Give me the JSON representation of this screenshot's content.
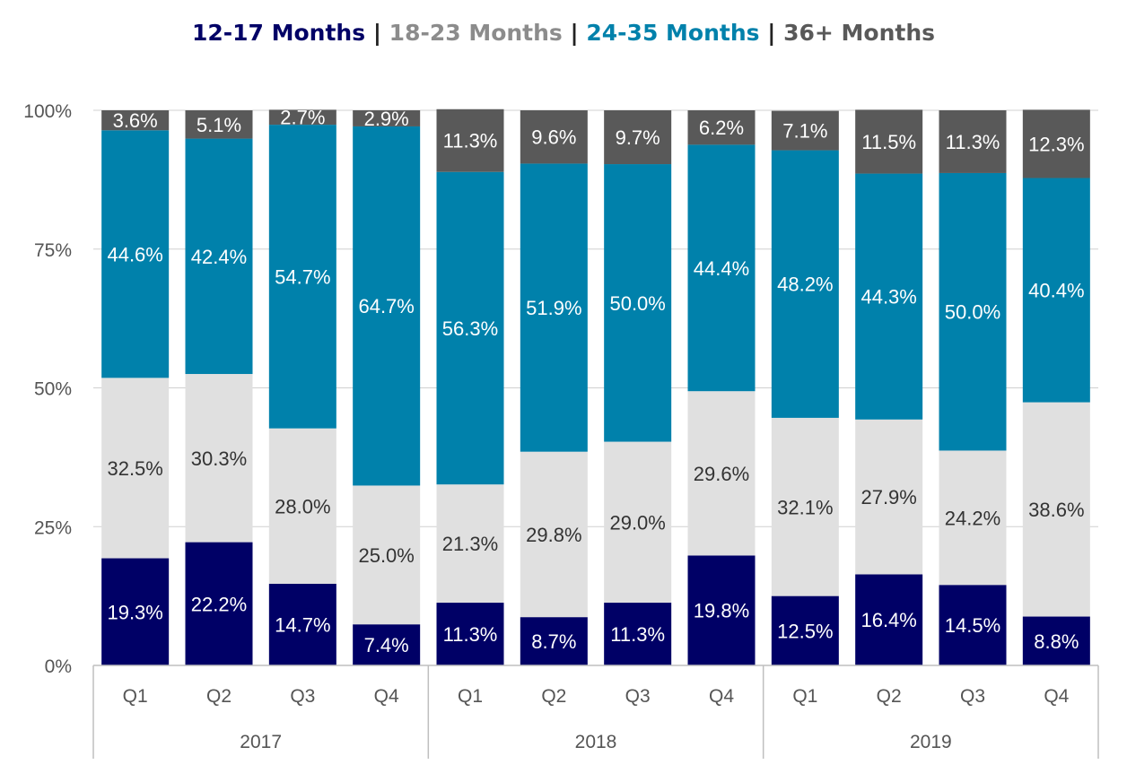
{
  "chart_data": {
    "type": "bar",
    "stacked": true,
    "title_parts": [
      "12-17 Months",
      "18-23 Months",
      "24-35 Months",
      "36+ Months"
    ],
    "title_separator": "|",
    "categories": [
      "Q1",
      "Q2",
      "Q3",
      "Q4",
      "Q1",
      "Q2",
      "Q3",
      "Q4",
      "Q1",
      "Q2",
      "Q3",
      "Q4"
    ],
    "groups": [
      {
        "label": "2017",
        "count": 4
      },
      {
        "label": "2018",
        "count": 4
      },
      {
        "label": "2019",
        "count": 4
      }
    ],
    "series": [
      {
        "name": "12-17 Months",
        "color": "#000066",
        "label_color": "#ffffff",
        "values": [
          19.3,
          22.2,
          14.7,
          7.4,
          11.3,
          8.7,
          11.3,
          19.8,
          12.5,
          16.4,
          14.5,
          8.8
        ]
      },
      {
        "name": "18-23 Months",
        "color": "#e0e0e0",
        "label_color": "#333333",
        "values": [
          32.5,
          30.3,
          28.0,
          25.0,
          21.3,
          29.8,
          29.0,
          29.6,
          32.1,
          27.9,
          24.2,
          38.6
        ]
      },
      {
        "name": "24-35 Months",
        "color": "#0081ab",
        "label_color": "#ffffff",
        "values": [
          44.6,
          42.4,
          54.7,
          64.7,
          56.3,
          51.9,
          50.0,
          44.4,
          48.2,
          44.3,
          50.0,
          40.4
        ]
      },
      {
        "name": "36+ Months",
        "color": "#595959",
        "label_color": "#ffffff",
        "values": [
          3.6,
          5.1,
          2.7,
          2.9,
          11.3,
          9.6,
          9.7,
          6.2,
          7.1,
          11.5,
          11.3,
          12.3
        ]
      }
    ],
    "title_colors": [
      "#000066",
      "#8c8c8c",
      "#0081ab",
      "#595959"
    ],
    "yticks": [
      "0%",
      "25%",
      "50%",
      "75%",
      "100%"
    ],
    "ylim": [
      0,
      100
    ],
    "grid": true,
    "legend": "none"
  }
}
